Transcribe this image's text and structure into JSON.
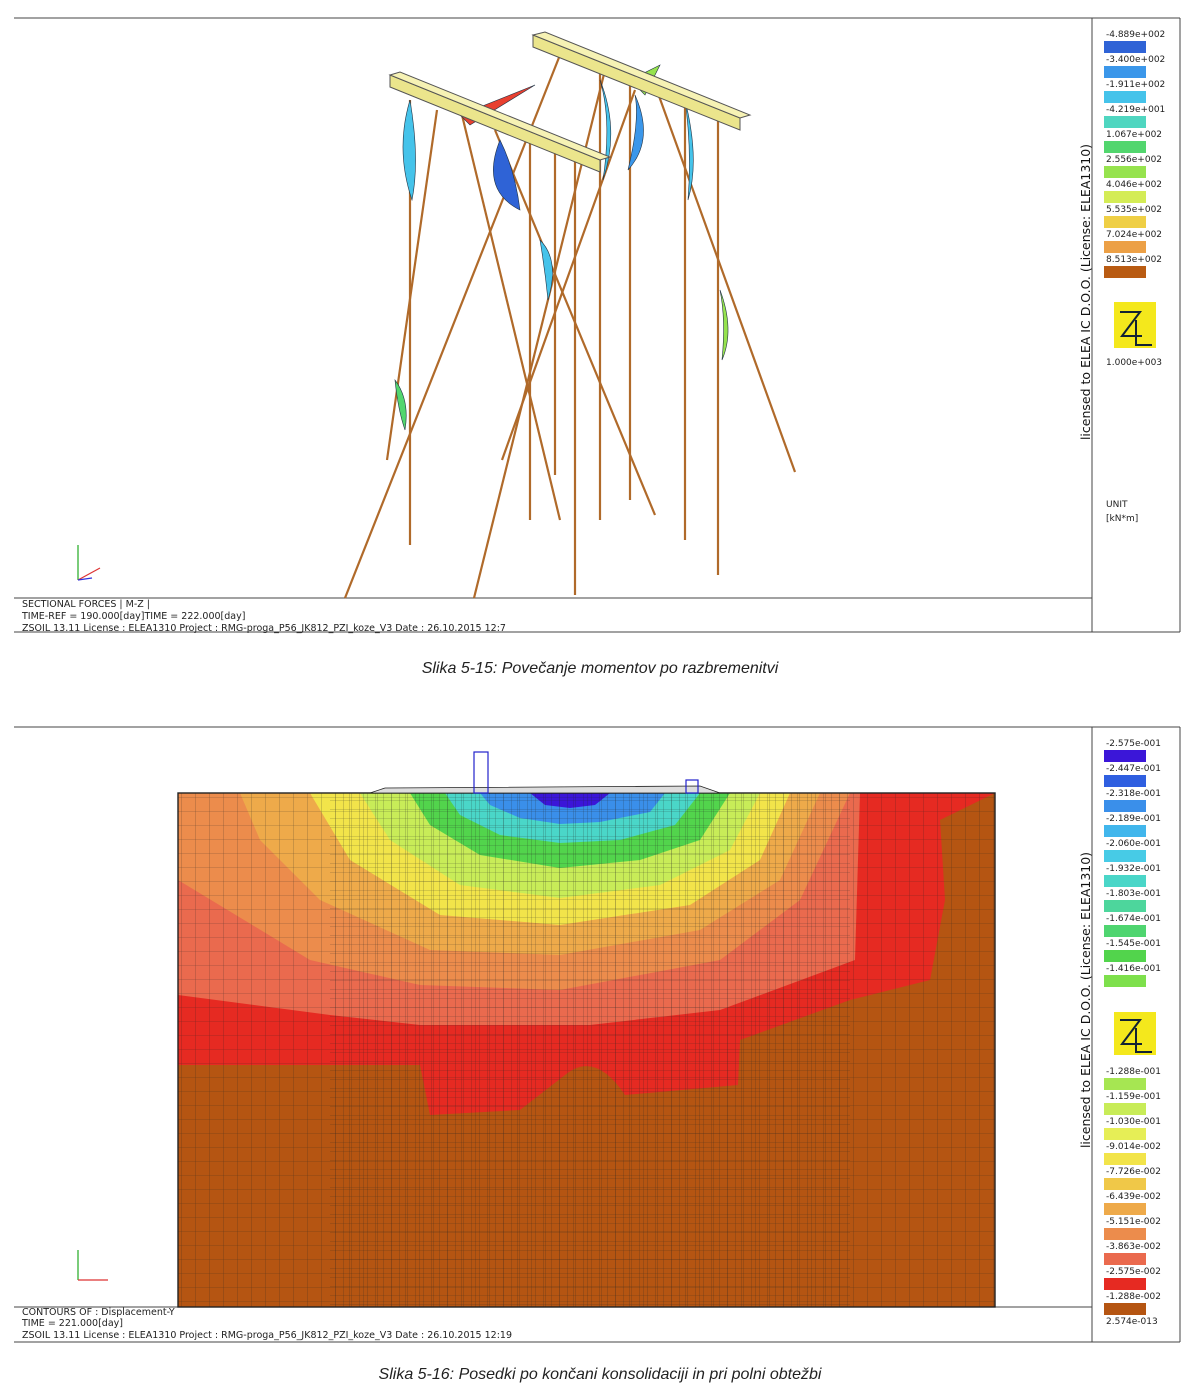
{
  "figure1": {
    "legend": [
      {
        "label": "-4.889e+002",
        "color": "#2f63d6"
      },
      {
        "label": "-3.400e+002",
        "color": "#3b97ea"
      },
      {
        "label": "-1.911e+002",
        "color": "#45c3ea"
      },
      {
        "label": "-4.219e+001",
        "color": "#4fd6c0"
      },
      {
        "label": "1.067e+002",
        "color": "#52d66e"
      },
      {
        "label": "2.556e+002",
        "color": "#96e34e"
      },
      {
        "label": "4.046e+002",
        "color": "#d4ec56"
      },
      {
        "label": "5.535e+002",
        "color": "#efcf45"
      },
      {
        "label": "7.024e+002",
        "color": "#eca046"
      },
      {
        "label": "8.513e+002",
        "color": "#b95b12"
      }
    ],
    "max_label": "1.000e+003",
    "unit_title": "UNIT",
    "unit": "[kN*m]",
    "license": "licensed to ELEA IC D.O.O. (License: ELEA1310)",
    "info": [
      "SECTIONAL FORCES | M-Z |",
      "TIME-REF = 190.000[day]TIME = 222.000[day]",
      "ZSOIL 13.11   License :  ELEA1310   Project : RMG-proga_P56_JK812_PZI_koze_V3     Date : 26.10.2015  12:7"
    ],
    "caption": "Slika 5-15: Povečanje momentov po razbremenitvi"
  },
  "figure2": {
    "legend_top": [
      {
        "label": "-2.575e-001",
        "color": "#3b16d8"
      },
      {
        "label": "-2.447e-001",
        "color": "#2f5fe0"
      },
      {
        "label": "-2.318e-001",
        "color": "#3a8fea"
      },
      {
        "label": "-2.189e-001",
        "color": "#41b6ec"
      },
      {
        "label": "-2.060e-001",
        "color": "#47cbe6"
      },
      {
        "label": "-1.932e-001",
        "color": "#4ad6c8"
      },
      {
        "label": "-1.803e-001",
        "color": "#4dd69c"
      },
      {
        "label": "-1.674e-001",
        "color": "#4fd570"
      },
      {
        "label": "-1.545e-001",
        "color": "#52d44c"
      },
      {
        "label": "-1.416e-001",
        "color": "#7ee04c"
      }
    ],
    "legend_bottom": [
      {
        "label": "-1.288e-001",
        "color": "#a6e652"
      },
      {
        "label": "-1.159e-001",
        "color": "#c8ec58"
      },
      {
        "label": "-1.030e-001",
        "color": "#e6ee56"
      },
      {
        "label": "-9.014e-002",
        "color": "#f2e44a"
      },
      {
        "label": "-7.726e-002",
        "color": "#f0c848"
      },
      {
        "label": "-6.439e-002",
        "color": "#eeaa4a"
      },
      {
        "label": "-5.151e-002",
        "color": "#ec8c4c"
      },
      {
        "label": "-3.863e-002",
        "color": "#ea6a4e"
      },
      {
        "label": "-2.575e-002",
        "color": "#e62a22"
      },
      {
        "label": "-1.288e-002",
        "color": "#b55512"
      },
      {
        "label": "2.574e-013"
      }
    ],
    "license": "licensed to ELEA IC D.O.O. (License: ELEA1310)",
    "info": [
      "CONTOURS OF : Displacement-Y",
      "TIME = 221.000[day]",
      "ZSOIL 13.11   License :  ELEA1310   Project : RMG-proga_P56_JK812_PZI_koze_V3     Date : 26.10.2015  12:19"
    ],
    "caption": "Slika 5-16: Posedki po končani konsolidaciji in pri polni obtežbi"
  }
}
